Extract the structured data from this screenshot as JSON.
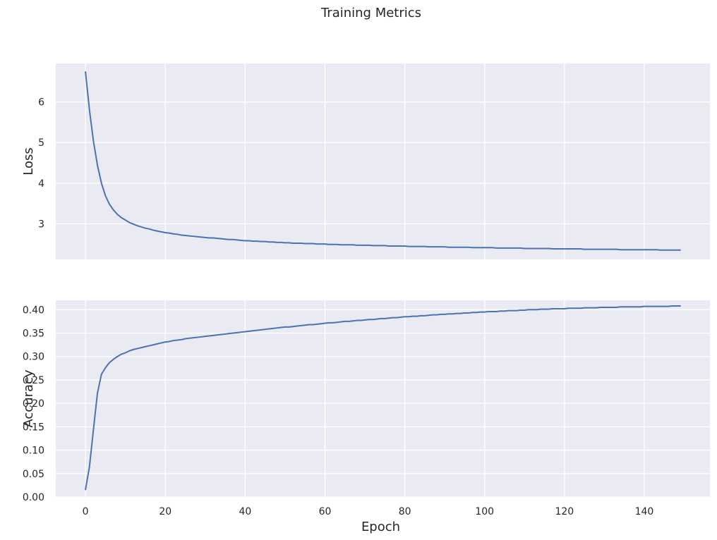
{
  "title": "Training Metrics",
  "chart_data": [
    {
      "type": "line",
      "ylabel": "Loss",
      "xlabel": "",
      "grid": true,
      "x_ticks": [
        0,
        20,
        40,
        60,
        80,
        100,
        120,
        140
      ],
      "y_ticks": [
        3,
        4,
        5,
        6
      ],
      "xlim": [
        -7.45,
        156.45
      ],
      "ylim": [
        2.12,
        6.95
      ],
      "series": [
        {
          "values": [
            6.74,
            5.8,
            5.03,
            4.44,
            4.0,
            3.69,
            3.48,
            3.34,
            3.23,
            3.15,
            3.09,
            3.03,
            2.99,
            2.95,
            2.92,
            2.89,
            2.87,
            2.84,
            2.82,
            2.8,
            2.78,
            2.77,
            2.75,
            2.74,
            2.72,
            2.71,
            2.7,
            2.69,
            2.68,
            2.67,
            2.66,
            2.65,
            2.65,
            2.64,
            2.63,
            2.62,
            2.61,
            2.61,
            2.6,
            2.59,
            2.58,
            2.58,
            2.57,
            2.57,
            2.56,
            2.56,
            2.55,
            2.55,
            2.54,
            2.54,
            2.53,
            2.53,
            2.52,
            2.52,
            2.52,
            2.51,
            2.51,
            2.51,
            2.5,
            2.5,
            2.5,
            2.49,
            2.49,
            2.49,
            2.48,
            2.48,
            2.48,
            2.48,
            2.47,
            2.47,
            2.47,
            2.47,
            2.46,
            2.46,
            2.46,
            2.46,
            2.45,
            2.45,
            2.45,
            2.45,
            2.45,
            2.44,
            2.44,
            2.44,
            2.44,
            2.44,
            2.43,
            2.43,
            2.43,
            2.43,
            2.43,
            2.42,
            2.42,
            2.42,
            2.42,
            2.42,
            2.42,
            2.41,
            2.41,
            2.41,
            2.41,
            2.41,
            2.41,
            2.4,
            2.4,
            2.4,
            2.4,
            2.4,
            2.4,
            2.4,
            2.39,
            2.39,
            2.39,
            2.39,
            2.39,
            2.39,
            2.39,
            2.38,
            2.38,
            2.38,
            2.38,
            2.38,
            2.38,
            2.38,
            2.38,
            2.37,
            2.37,
            2.37,
            2.37,
            2.37,
            2.37,
            2.37,
            2.37,
            2.37,
            2.36,
            2.36,
            2.36,
            2.36,
            2.36,
            2.36,
            2.36,
            2.36,
            2.36,
            2.36,
            2.35,
            2.35,
            2.35,
            2.35,
            2.35,
            2.35
          ]
        }
      ]
    },
    {
      "type": "line",
      "ylabel": "Accuracy",
      "xlabel": "Epoch",
      "grid": true,
      "x_ticks": [
        0,
        20,
        40,
        60,
        80,
        100,
        120,
        140
      ],
      "x_tick_labels": [
        "0",
        "20",
        "40",
        "60",
        "80",
        "100",
        "120",
        "140"
      ],
      "y_ticks": [
        0.0,
        0.05,
        0.1,
        0.15,
        0.2,
        0.25,
        0.3,
        0.35,
        0.4
      ],
      "y_tick_labels": [
        "0.00",
        "0.05",
        "0.10",
        "0.15",
        "0.20",
        "0.25",
        "0.30",
        "0.35",
        "0.40"
      ],
      "xlim": [
        -7.45,
        156.45
      ],
      "ylim": [
        0.0,
        0.42
      ],
      "series": [
        {
          "values": [
            0.016,
            0.065,
            0.145,
            0.222,
            0.262,
            0.276,
            0.287,
            0.294,
            0.3,
            0.305,
            0.308,
            0.312,
            0.315,
            0.317,
            0.319,
            0.321,
            0.323,
            0.325,
            0.327,
            0.329,
            0.331,
            0.332,
            0.334,
            0.335,
            0.336,
            0.338,
            0.339,
            0.34,
            0.341,
            0.342,
            0.343,
            0.344,
            0.345,
            0.346,
            0.347,
            0.348,
            0.349,
            0.35,
            0.351,
            0.352,
            0.353,
            0.354,
            0.355,
            0.356,
            0.357,
            0.358,
            0.359,
            0.36,
            0.361,
            0.362,
            0.363,
            0.363,
            0.364,
            0.365,
            0.366,
            0.367,
            0.368,
            0.368,
            0.369,
            0.37,
            0.371,
            0.372,
            0.372,
            0.373,
            0.374,
            0.375,
            0.375,
            0.376,
            0.377,
            0.377,
            0.378,
            0.379,
            0.379,
            0.38,
            0.381,
            0.381,
            0.382,
            0.383,
            0.383,
            0.384,
            0.385,
            0.385,
            0.386,
            0.386,
            0.387,
            0.387,
            0.388,
            0.389,
            0.389,
            0.39,
            0.39,
            0.391,
            0.391,
            0.392,
            0.392,
            0.393,
            0.393,
            0.394,
            0.394,
            0.395,
            0.395,
            0.396,
            0.396,
            0.396,
            0.397,
            0.397,
            0.398,
            0.398,
            0.398,
            0.399,
            0.399,
            0.4,
            0.4,
            0.4,
            0.401,
            0.401,
            0.401,
            0.402,
            0.402,
            0.402,
            0.402,
            0.403,
            0.403,
            0.403,
            0.403,
            0.404,
            0.404,
            0.404,
            0.404,
            0.405,
            0.405,
            0.405,
            0.405,
            0.405,
            0.406,
            0.406,
            0.406,
            0.406,
            0.406,
            0.406,
            0.407,
            0.407,
            0.407,
            0.407,
            0.407,
            0.407,
            0.407,
            0.408,
            0.408,
            0.408
          ]
        }
      ]
    }
  ]
}
